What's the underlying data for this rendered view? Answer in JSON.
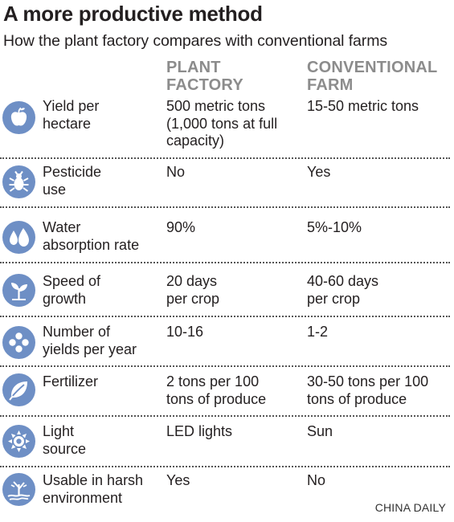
{
  "title": "A more productive method",
  "subtitle": "How the plant factory compares with conventional farms",
  "columns": {
    "plant_factory": [
      "PLANT",
      "FACTORY"
    ],
    "conventional_farm": [
      "CONVENTIONAL",
      "FARM"
    ]
  },
  "rows": [
    {
      "icon": "apple-icon",
      "label": [
        "Yield per",
        "hectare"
      ],
      "plant_factory": [
        "500 metric tons",
        "(1,000 tons at full",
        "capacity)"
      ],
      "conventional_farm": [
        "15-50 metric tons"
      ]
    },
    {
      "icon": "bug-icon",
      "label": [
        "Pesticide",
        "use"
      ],
      "plant_factory": [
        "No"
      ],
      "conventional_farm": [
        "Yes"
      ]
    },
    {
      "icon": "water-drops-icon",
      "label": [
        "Water",
        "absorption rate"
      ],
      "plant_factory": [
        "90%"
      ],
      "conventional_farm": [
        "5%-10%"
      ]
    },
    {
      "icon": "sprout-icon",
      "label": [
        "Speed of",
        "growth"
      ],
      "plant_factory": [
        "20 days",
        "per crop"
      ],
      "conventional_farm": [
        "40-60 days",
        "per crop"
      ]
    },
    {
      "icon": "circles-icon",
      "label": [
        "Number of",
        "yields per year"
      ],
      "plant_factory": [
        "10-16"
      ],
      "conventional_farm": [
        "1-2"
      ]
    },
    {
      "icon": "leaf-icon",
      "label": [
        "Fertilizer"
      ],
      "plant_factory": [
        "2 tons per 100",
        "tons of produce"
      ],
      "conventional_farm": [
        "30-50 tons per 100",
        "tons of produce"
      ]
    },
    {
      "icon": "sun-icon",
      "label": [
        "Light",
        "source"
      ],
      "plant_factory": [
        "LED lights"
      ],
      "conventional_farm": [
        "Sun"
      ]
    },
    {
      "icon": "dry-land-icon",
      "label": [
        "Usable in harsh",
        "environment"
      ],
      "plant_factory": [
        "Yes"
      ],
      "conventional_farm": [
        "No"
      ]
    }
  ],
  "source": "CHINA DAILY",
  "colors": {
    "icon_bg": "#6e8fc5",
    "header_gray": "#8c8c8c",
    "text": "#231f20"
  }
}
